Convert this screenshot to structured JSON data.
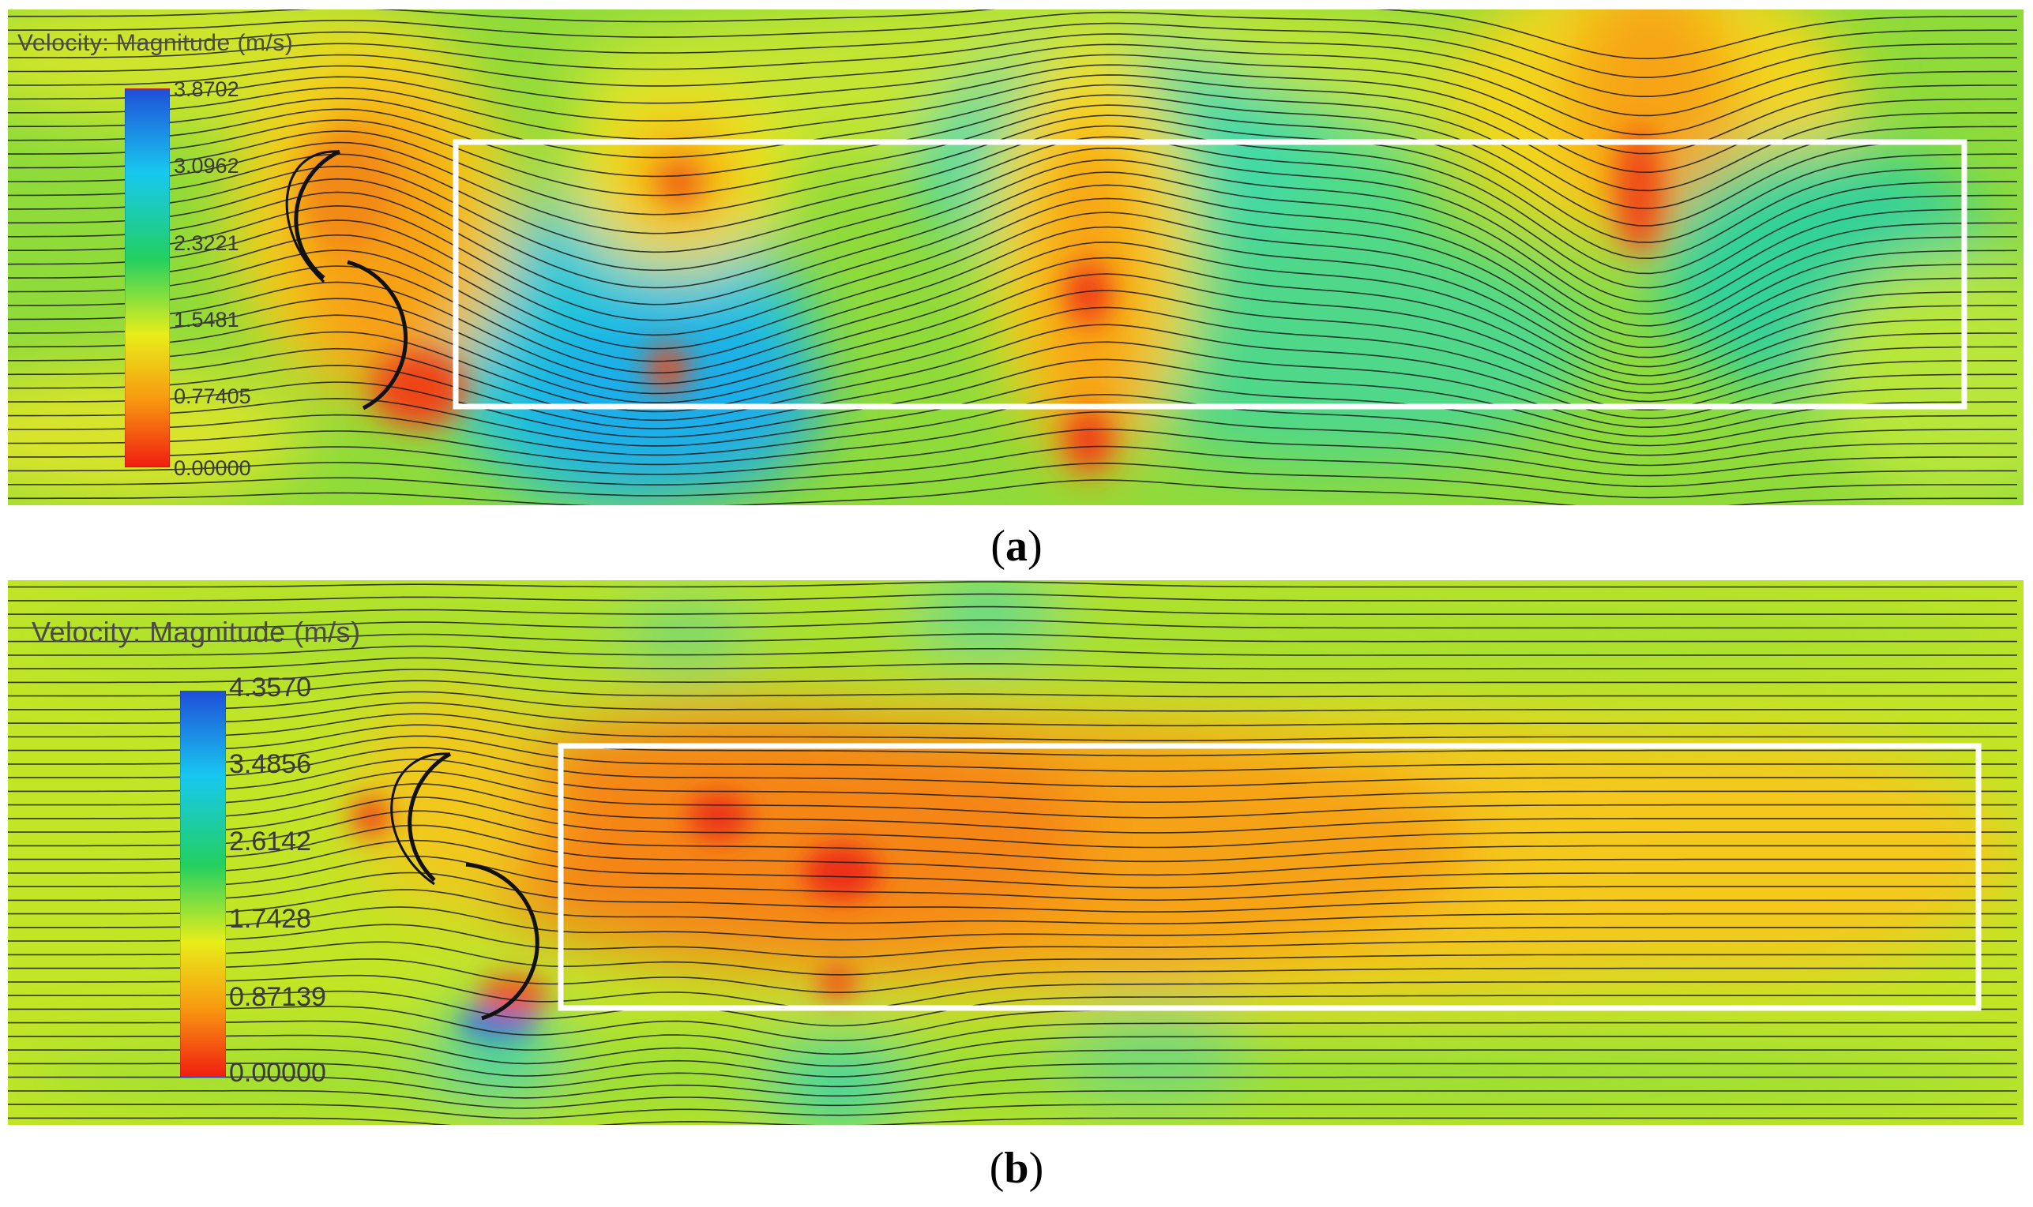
{
  "panels": [
    {
      "id": "a",
      "caption_open": "(",
      "caption_letter": "a",
      "caption_close": ")",
      "legend_title": "Velocity: Magnitude (m/s)",
      "colorbar_ticks": [
        "3.8702",
        "3.0962",
        "2.3221",
        "1.5481",
        "0.77405",
        "0.00000"
      ],
      "max_value": 3.8702,
      "min_value": 0.0
    },
    {
      "id": "b",
      "caption_open": "(",
      "caption_letter": "b",
      "caption_close": ")",
      "legend_title": "Velocity: Magnitude (m/s)",
      "colorbar_ticks": [
        "4.3570",
        "3.4856",
        "2.6142",
        "1.7428",
        "0.87139",
        "0.00000"
      ],
      "max_value": 4.357,
      "min_value": 0.0
    }
  ],
  "colormap": [
    "#1f4fd8",
    "#18c8f0",
    "#22d060",
    "#e8ee1a",
    "#f89a10",
    "#f01e10"
  ]
}
